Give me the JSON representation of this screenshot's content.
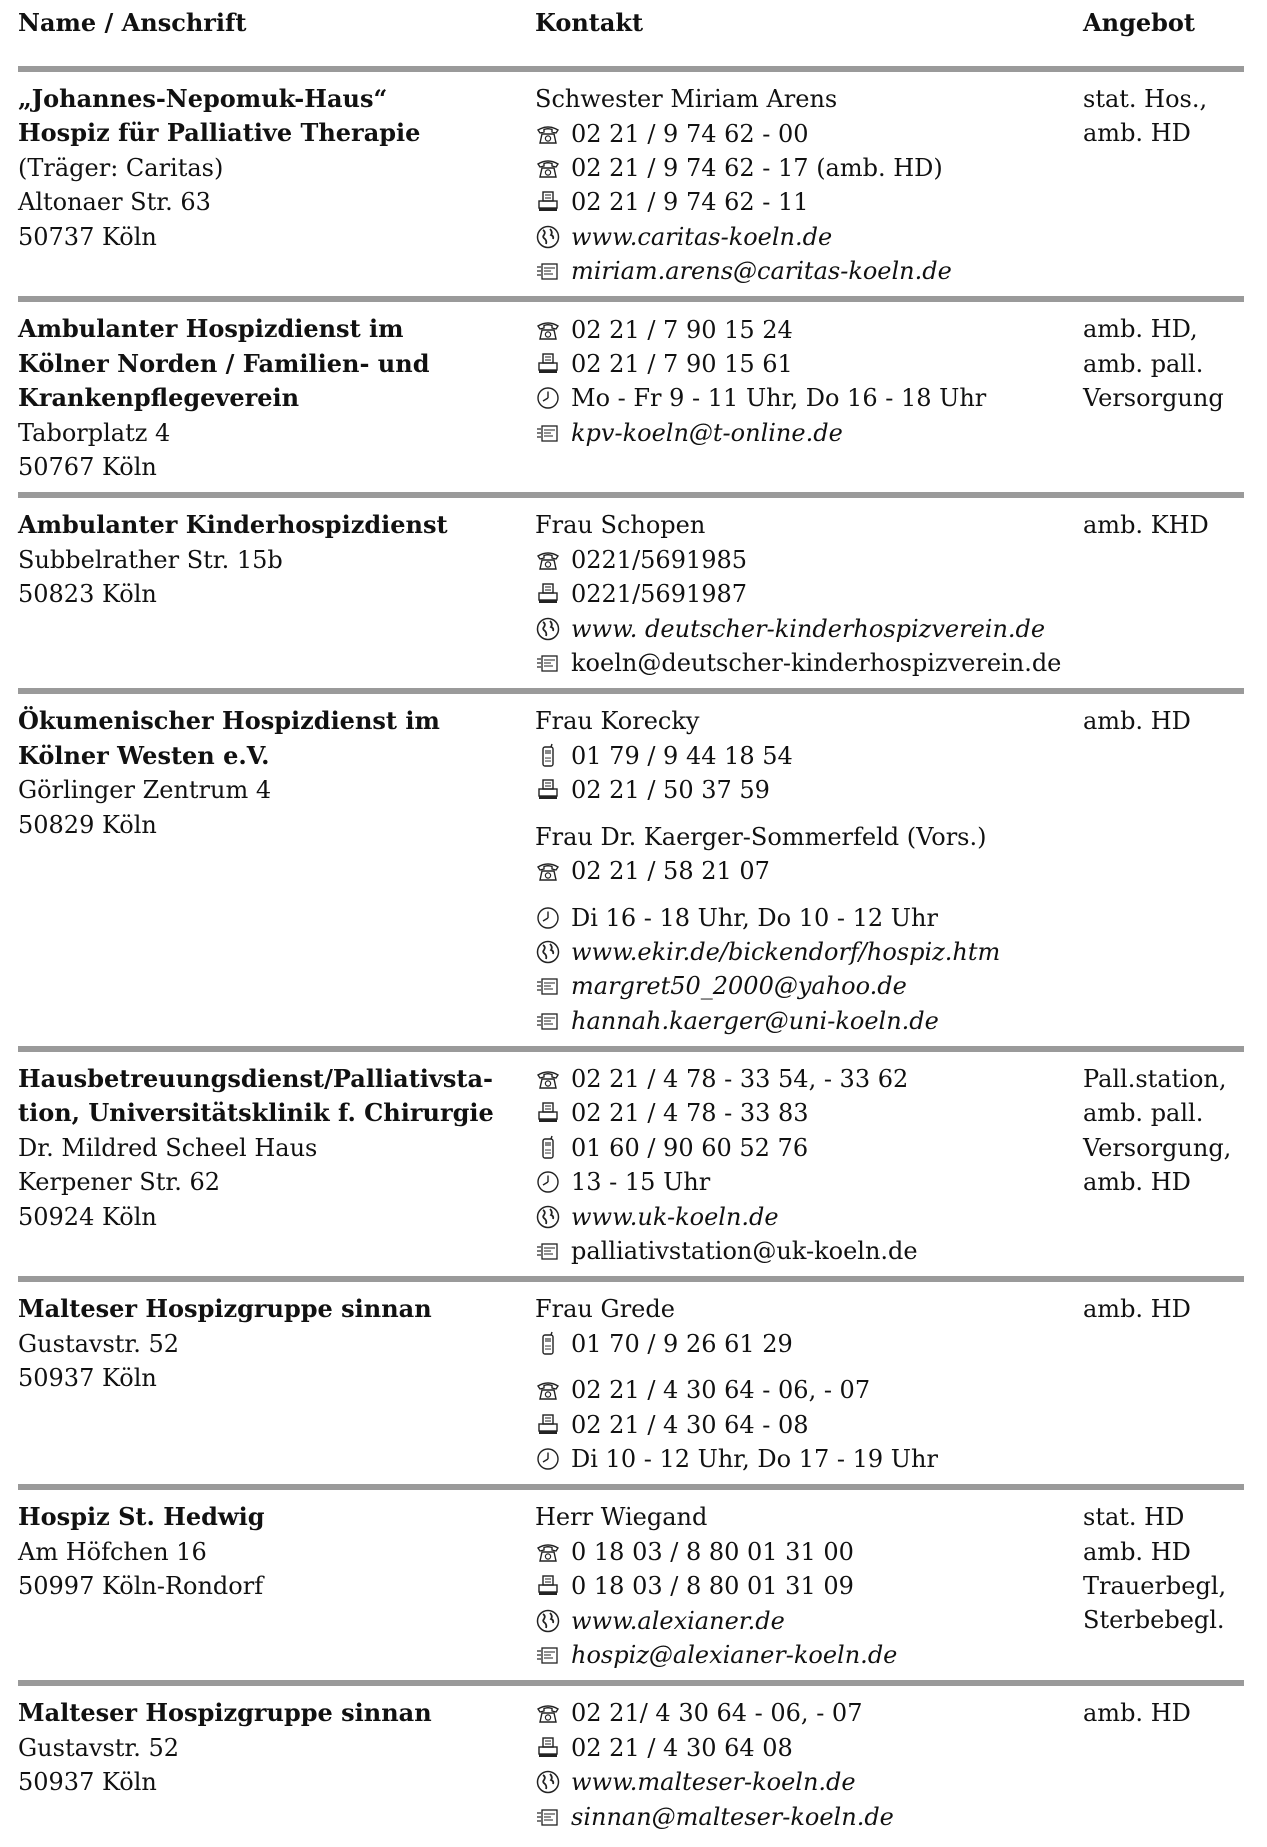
{
  "header": {
    "col1": "Name / Anschrift",
    "col2": "Kontakt",
    "col3": "Angebot"
  },
  "rows": [
    {
      "name": [
        "„Johannes-Nepomuk-Haus“",
        "Hospiz für Palliative Therapie"
      ],
      "address": [
        "(Träger: Caritas)",
        "Altonaer Str. 63",
        "50737 Köln"
      ],
      "contacts": [
        {
          "type": "text",
          "text": "Schwester Miriam Arens"
        },
        {
          "type": "phone",
          "icon": "phone-icon",
          "text": "02 21 / 9 74 62 - 00"
        },
        {
          "type": "phone",
          "icon": "phone-icon",
          "text": "02 21 / 9 74 62 - 17 (amb. HD)"
        },
        {
          "type": "fax",
          "icon": "fax-icon",
          "text": "02 21 / 9 74 62 - 11"
        },
        {
          "type": "web",
          "icon": "globe-icon",
          "text": "www.caritas-koeln.de",
          "italic": true
        },
        {
          "type": "email",
          "icon": "email-icon",
          "text": "miriam.arens@caritas-koeln.de",
          "italic": true
        }
      ],
      "offer": [
        "stat. Hos.,",
        "amb. HD"
      ]
    },
    {
      "name": [
        "Ambulanter Hospizdienst im",
        "Kölner Norden / Familien- und",
        "Krankenpflegeverein"
      ],
      "address": [
        "Taborplatz 4",
        "50767 Köln"
      ],
      "contacts": [
        {
          "type": "phone",
          "icon": "phone-icon",
          "text": "02 21 / 7 90 15 24"
        },
        {
          "type": "fax",
          "icon": "fax-icon",
          "text": "02 21 / 7 90 15 61"
        },
        {
          "type": "clock",
          "icon": "clock-icon",
          "text": "Mo - Fr 9 - 11 Uhr, Do 16 - 18 Uhr"
        },
        {
          "type": "email",
          "icon": "email-icon",
          "text": "kpv-koeln@t-online.de",
          "italic": true
        }
      ],
      "offer": [
        "amb. HD,",
        "amb. pall.",
        "Versorgung"
      ]
    },
    {
      "name": [
        "Ambulanter Kinderhospizdienst"
      ],
      "address": [
        "Subbelrather Str. 15b",
        "50823 Köln"
      ],
      "contacts": [
        {
          "type": "text",
          "text": "Frau Schopen"
        },
        {
          "type": "phone",
          "icon": "phone-icon",
          "text": "0221/5691985"
        },
        {
          "type": "fax",
          "icon": "fax-icon",
          "text": "0221/5691987"
        },
        {
          "type": "web",
          "icon": "globe-icon",
          "text": "www. deutscher-kinderhospizverein.de",
          "italic": true
        },
        {
          "type": "email",
          "icon": "email-icon",
          "text": "koeln@deutscher-kinderhospizverein.de"
        }
      ],
      "offer": [
        "amb. KHD"
      ]
    },
    {
      "name": [
        "Ökumenischer Hospizdienst im",
        "Kölner Westen e.V."
      ],
      "address": [
        "Görlinger Zentrum 4",
        "50829 Köln"
      ],
      "contacts": [
        {
          "type": "text",
          "text": "Frau Korecky"
        },
        {
          "type": "mobile",
          "icon": "mobile-phone-icon",
          "text": "01 79 / 9 44 18 54"
        },
        {
          "type": "fax",
          "icon": "fax-icon",
          "text": "02 21 / 50 37 59"
        },
        {
          "type": "gap"
        },
        {
          "type": "text",
          "text": "Frau Dr. Kaerger-Sommerfeld (Vors.)"
        },
        {
          "type": "phone",
          "icon": "phone-icon",
          "text": "02 21 / 58 21 07"
        },
        {
          "type": "gap"
        },
        {
          "type": "clock",
          "icon": "clock-icon",
          "text": "Di 16 - 18 Uhr, Do 10 - 12 Uhr"
        },
        {
          "type": "web",
          "icon": "globe-icon",
          "text": "www.ekir.de/bickendorf/hospiz.htm",
          "italic": true
        },
        {
          "type": "email",
          "icon": "email-icon",
          "text": "margret50_2000@yahoo.de",
          "italic": true
        },
        {
          "type": "email",
          "icon": "email-icon",
          "text": "hannah.kaerger@uni-koeln.de",
          "italic": true
        }
      ],
      "offer": [
        "amb. HD"
      ]
    },
    {
      "name": [
        "Hausbetreuungsdienst/Palliativsta-",
        "tion, Universitätsklinik f. Chirurgie"
      ],
      "address": [
        "Dr. Mildred Scheel Haus",
        "Kerpener Str. 62",
        "50924 Köln"
      ],
      "contacts": [
        {
          "type": "phone",
          "icon": "phone-icon",
          "text": "02 21 / 4 78 - 33 54, - 33 62"
        },
        {
          "type": "fax",
          "icon": "fax-icon",
          "text": "02 21 / 4 78 - 33 83"
        },
        {
          "type": "mobile",
          "icon": "mobile-phone-icon",
          "text": "01 60 / 90 60 52 76"
        },
        {
          "type": "clock",
          "icon": "clock-icon",
          "text": "13 - 15 Uhr"
        },
        {
          "type": "web",
          "icon": "globe-icon",
          "text": "www.uk-koeln.de",
          "italic": true
        },
        {
          "type": "email",
          "icon": "email-icon",
          "text": "palliativstation@uk-koeln.de"
        }
      ],
      "offer": [
        "Pall.station,",
        "amb. pall.",
        "Versorgung,",
        "amb. HD"
      ]
    },
    {
      "name": [
        "Malteser Hospizgruppe sinnan"
      ],
      "address": [
        "Gustavstr. 52",
        "50937 Köln"
      ],
      "contacts": [
        {
          "type": "text",
          "text": "Frau Grede"
        },
        {
          "type": "mobile",
          "icon": "mobile-phone-icon",
          "text": "01 70 / 9 26 61 29"
        },
        {
          "type": "gap"
        },
        {
          "type": "phone",
          "icon": "phone-icon",
          "text": "02 21 / 4 30 64 - 06, - 07"
        },
        {
          "type": "fax",
          "icon": "fax-icon",
          "text": "02 21 / 4 30 64 - 08"
        },
        {
          "type": "clock",
          "icon": "clock-icon",
          "text": "Di 10 - 12 Uhr, Do 17 - 19 Uhr"
        }
      ],
      "offer": [
        "amb. HD"
      ]
    },
    {
      "name": [
        "Hospiz St. Hedwig"
      ],
      "address": [
        "Am Höfchen 16",
        "50997 Köln-Rondorf"
      ],
      "contacts": [
        {
          "type": "text",
          "text": "Herr Wiegand"
        },
        {
          "type": "phone",
          "icon": "phone-icon",
          "text": "0 18 03 / 8 80 01 31 00"
        },
        {
          "type": "fax",
          "icon": "fax-icon",
          "text": "0 18 03 / 8 80 01 31 09"
        },
        {
          "type": "web",
          "icon": "globe-icon",
          "text": "www.alexianer.de",
          "italic": true
        },
        {
          "type": "email",
          "icon": "email-icon",
          "text": "hospiz@alexianer-koeln.de",
          "italic": true
        }
      ],
      "offer": [
        "stat. HD",
        "amb. HD",
        "Trauerbegl,",
        "Sterbebegl."
      ]
    },
    {
      "name": [
        "Malteser Hospizgruppe sinnan"
      ],
      "address": [
        "Gustavstr. 52",
        "50937 Köln"
      ],
      "contacts": [
        {
          "type": "phone",
          "icon": "phone-icon",
          "text": "02 21/ 4 30 64 - 06, - 07"
        },
        {
          "type": "fax",
          "icon": "fax-icon",
          "text": "02 21 / 4 30 64 08"
        },
        {
          "type": "web",
          "icon": "globe-icon",
          "text": "www.malteser-koeln.de",
          "italic": true
        },
        {
          "type": "email",
          "icon": "email-icon",
          "text": "sinnan@malteser-koeln.de",
          "italic": true
        }
      ],
      "offer": [
        "amb. HD"
      ]
    }
  ]
}
